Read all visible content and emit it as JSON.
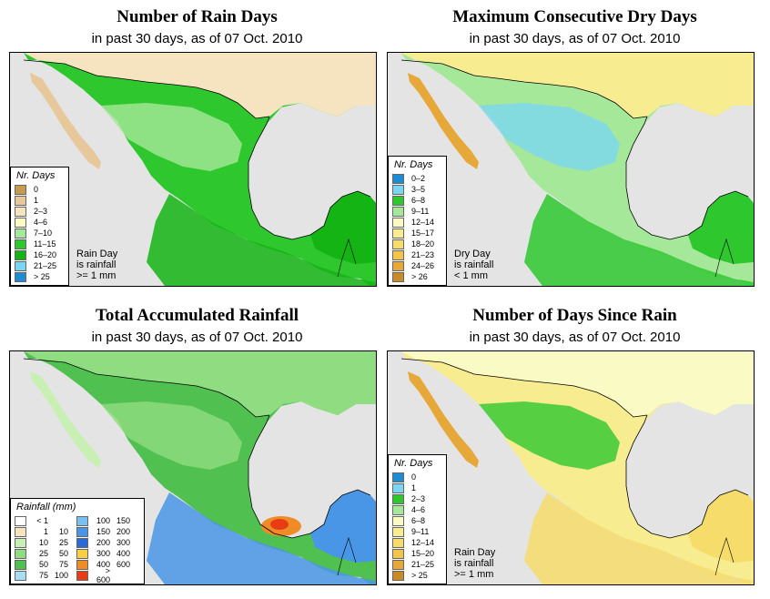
{
  "panels": [
    {
      "title": "Number of Rain Days",
      "subtitle": "in past 30 days, as of  07 Oct. 2010",
      "legend_title": "Nr. Days",
      "legend": [
        {
          "label": "0",
          "color": "#c89a4e"
        },
        {
          "label": "1",
          "color": "#e6c89a"
        },
        {
          "label": "2–3",
          "color": "#f6e4c0"
        },
        {
          "label": "4–6",
          "color": "#fafac4"
        },
        {
          "label": "7–10",
          "color": "#a6e89a"
        },
        {
          "label": "11–15",
          "color": "#2ec82e"
        },
        {
          "label": "16–20",
          "color": "#14b414"
        },
        {
          "label": "21–25",
          "color": "#7ad6f0"
        },
        {
          "label": "> 25",
          "color": "#1e8cd2"
        }
      ],
      "note": [
        "Rain Day",
        "is rainfall",
        ">= 1 mm"
      ]
    },
    {
      "title": "Maximum Consecutive Dry Days",
      "subtitle": "in past 30 days, as of  07 Oct. 2010",
      "legend_title": "Nr. Days",
      "legend": [
        {
          "label": "0–2",
          "color": "#1e8cd2"
        },
        {
          "label": "3–5",
          "color": "#7ad6f0"
        },
        {
          "label": "6–8",
          "color": "#2ec82e"
        },
        {
          "label": "9–11",
          "color": "#a6e89a"
        },
        {
          "label": "12–14",
          "color": "#fafac4"
        },
        {
          "label": "15–17",
          "color": "#f8ec90"
        },
        {
          "label": "18–20",
          "color": "#f6dc6a"
        },
        {
          "label": "21–23",
          "color": "#f2c44a"
        },
        {
          "label": "24–26",
          "color": "#e6a838"
        },
        {
          "label": "> 26",
          "color": "#c88a26"
        }
      ],
      "note": [
        "Dry Day",
        "is rainfall",
        "< 1 mm"
      ]
    },
    {
      "title": "Total Accumulated Rainfall",
      "subtitle": "in past 30 days, as of  07 Oct. 2010",
      "legend_title": "Rainfall (mm)",
      "legend_left": [
        {
          "a": "< 1",
          "b": "",
          "color": "#ffffff"
        },
        {
          "a": "1",
          "b": "10",
          "color": "#f6e4c0"
        },
        {
          "a": "10",
          "b": "25",
          "color": "#c8f0b4"
        },
        {
          "a": "25",
          "b": "50",
          "color": "#90dc80"
        },
        {
          "a": "50",
          "b": "75",
          "color": "#50c050"
        },
        {
          "a": "75",
          "b": "100",
          "color": "#aadcf6"
        }
      ],
      "legend_right": [
        {
          "a": "100",
          "b": "150",
          "color": "#78c0f0"
        },
        {
          "a": "150",
          "b": "200",
          "color": "#4a96e6"
        },
        {
          "a": "200",
          "b": "300",
          "color": "#2a6ad6"
        },
        {
          "a": "300",
          "b": "400",
          "color": "#f8d046"
        },
        {
          "a": "400",
          "b": "600",
          "color": "#f08c28"
        },
        {
          "a": "> 600",
          "b": "",
          "color": "#e83c14"
        }
      ]
    },
    {
      "title": "Number of Days Since Rain",
      "subtitle": "in past 30 days, as of  07 Oct. 2010",
      "legend_title": "Nr. Days",
      "legend": [
        {
          "label": "0",
          "color": "#1e8cd2"
        },
        {
          "label": "1",
          "color": "#7ad6f0"
        },
        {
          "label": "2–3",
          "color": "#2ec82e"
        },
        {
          "label": "4–6",
          "color": "#a6e89a"
        },
        {
          "label": "6–8",
          "color": "#fafac4"
        },
        {
          "label": "9–11",
          "color": "#f8ec90"
        },
        {
          "label": "12–14",
          "color": "#f6dc6a"
        },
        {
          "label": "15–20",
          "color": "#f2c44a"
        },
        {
          "label": "21–25",
          "color": "#e6a838"
        },
        {
          "label": "> 25",
          "color": "#c88a26"
        }
      ],
      "note": [
        "Rain Day",
        "is rainfall",
        ">= 1 mm"
      ]
    }
  ],
  "fills": {
    "ocean": "#e4e4e4",
    "p0": {
      "land": "#2ec82e",
      "usa": "#f6e4c0",
      "baja": "#e6c89a",
      "north": "#a6e89a",
      "south": "#14b414"
    },
    "p1": {
      "land": "#a6e89a",
      "usa": "#f8ec90",
      "baja": "#e6a838",
      "north": "#7ad6f0",
      "south": "#2ec82e"
    },
    "p2": {
      "land": "#50c050",
      "usa": "#90dc80",
      "baja": "#c8f0b4",
      "north": "#90dc80",
      "south": "#4a96e6",
      "hot": "#e83c14",
      "warm": "#f08c28"
    },
    "p3": {
      "land": "#f8ec90",
      "usa": "#fafac4",
      "baja": "#e6a838",
      "north": "#2ec82e",
      "south": "#f6dc6a"
    }
  }
}
